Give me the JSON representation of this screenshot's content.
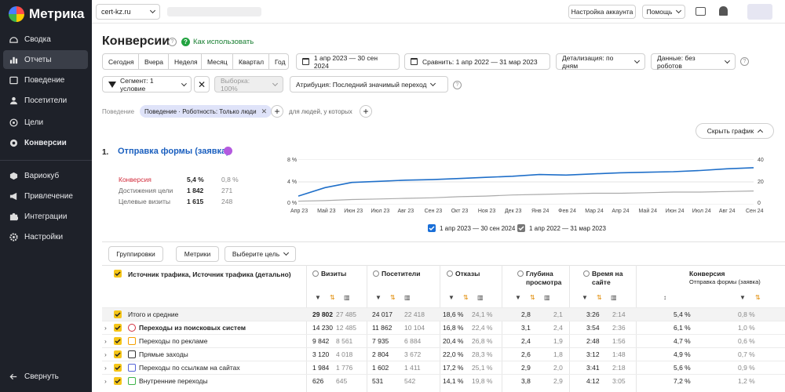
{
  "app": {
    "name": "Метрика"
  },
  "nav": {
    "items": [
      "Сводка",
      "Отчеты",
      "Поведение",
      "Посетители",
      "Цели",
      "Конверсии",
      "Вариокуб",
      "Привлечение",
      "Интеграции",
      "Настройки"
    ],
    "collapse": "Свернуть"
  },
  "top": {
    "site": "cert-kz.ru",
    "account_settings": "Настройка аккаунта",
    "help": "Помощь"
  },
  "page": {
    "title": "Конверсии",
    "howto": "Как использовать"
  },
  "periods": [
    "Сегодня",
    "Вчера",
    "Неделя",
    "Месяц",
    "Квартал",
    "Год"
  ],
  "date_range": "1 апр 2023 — 30 сен 2024",
  "compare": "Сравнить: 1 апр 2022 — 31 мар 2023",
  "detail": "Детализация: по дням",
  "data_filter": "Данные: без роботов",
  "segment": "Сегмент: 1 условие",
  "sample": "Выборка: 100%",
  "attribution": "Атрибуция: Последний значимый переход",
  "filter": {
    "behavior_lbl": "Поведение",
    "chip": "Поведение · Роботность: Только люди",
    "people": "для людей, у которых"
  },
  "hide_chart": "Скрыть график",
  "goal": {
    "index": "1.",
    "name": "Отправка формы (заявка)"
  },
  "stats": [
    {
      "label": "Конверсия",
      "v1": "5,4 %",
      "v2": "0,8 %"
    },
    {
      "label": "Достижения цели",
      "v1": "1 842",
      "v2": "271"
    },
    {
      "label": "Целевые визиты",
      "v1": "1 615",
      "v2": "248"
    }
  ],
  "colors": {
    "sidebar": "#1e2129",
    "accent": "#1a5fbf",
    "series1": "#1f6fc9",
    "series2": "#aaaaaa",
    "conversion": "#d22d3c",
    "green": "#22a340",
    "yellow": "#f5c518"
  },
  "chart_data": {
    "type": "line",
    "x": [
      "Апр 23",
      "Май 23",
      "Июн 23",
      "Июл 23",
      "Авг 23",
      "Сен 23",
      "Окт 23",
      "Ноя 23",
      "Дек 23",
      "Янв 24",
      "Фев 24",
      "Мар 24",
      "Апр 24",
      "Май 24",
      "Июн 24",
      "Июл 24",
      "Авг 24",
      "Сен 24"
    ],
    "y_left_ticks": [
      "8 %",
      "4 %",
      "0 %"
    ],
    "y_right_ticks": [
      "40",
      "20",
      "0"
    ],
    "ylim_left": [
      0,
      8
    ],
    "ylim_right": [
      0,
      40
    ],
    "series": [
      {
        "name": "1 апр 2023 — 30 сен 2024",
        "axis": "left",
        "values": [
          1.5,
          3.0,
          3.9,
          4.1,
          4.3,
          4.4,
          4.6,
          4.8,
          5.0,
          5.3,
          5.2,
          5.4,
          5.6,
          5.7,
          5.8,
          6.0,
          6.3,
          6.5
        ]
      },
      {
        "name": "1 апр 2022 — 31 мар 2023",
        "axis": "left",
        "values": [
          0.6,
          0.7,
          0.9,
          1.0,
          1.1,
          1.2,
          1.4,
          1.5,
          1.7,
          1.8,
          1.9,
          2.0,
          2.0,
          2.1,
          2.2,
          2.2,
          2.3,
          2.4
        ]
      }
    ],
    "grid": true,
    "legend": "bottom"
  },
  "table": {
    "buttons": [
      "Группировки",
      "Метрики",
      "Выберите цель"
    ],
    "dim_header": "Источник трафика, Источник трафика (детально)",
    "col_headers": [
      "Визиты",
      "Посетители",
      "Отказы",
      "Глубина просмотра",
      "Время на сайте",
      "Конверсия"
    ],
    "conv_sub": "Отправка формы (заявка)",
    "rows": [
      {
        "name": "Итого и средние",
        "visits": "29 802",
        "visits2": "27 485",
        "users": "24 017",
        "users2": "22 418",
        "bounce": "18,6 %",
        "bounce2": "24,1 %",
        "depth": "2,8",
        "depth2": "2,1",
        "time": "3:26",
        "time2": "2:14",
        "conv": "5,4 %",
        "conv2": "0,8 %"
      },
      {
        "name": "Переходы из поисковых систем",
        "visits": "14 230",
        "visits2": "12 485",
        "users": "11 862",
        "users2": "10 104",
        "bounce": "16,8 %",
        "bounce2": "22,4 %",
        "depth": "3,1",
        "depth2": "2,4",
        "time": "3:54",
        "time2": "2:36",
        "conv": "6,1 %",
        "conv2": "1,0 %"
      },
      {
        "name": "Переходы по рекламе",
        "visits": "9 842",
        "visits2": "8 561",
        "users": "7 935",
        "users2": "6 884",
        "bounce": "20,4 %",
        "bounce2": "26,8 %",
        "depth": "2,4",
        "depth2": "1,9",
        "time": "2:48",
        "time2": "1:56",
        "conv": "4,7 %",
        "conv2": "0,6 %"
      },
      {
        "name": "Прямые заходы",
        "visits": "3 120",
        "visits2": "4 018",
        "users": "2 804",
        "users2": "3 672",
        "bounce": "22,0 %",
        "bounce2": "28,3 %",
        "depth": "2,6",
        "depth2": "1,8",
        "time": "3:12",
        "time2": "1:48",
        "conv": "4,9 %",
        "conv2": "0,7 %"
      },
      {
        "name": "Переходы по ссылкам на сайтах",
        "visits": "1 984",
        "visits2": "1 776",
        "users": "1 602",
        "users2": "1 411",
        "bounce": "17,2 %",
        "bounce2": "25,1 %",
        "depth": "2,9",
        "depth2": "2,0",
        "time": "3:41",
        "time2": "2:18",
        "conv": "5,6 %",
        "conv2": "0,9 %"
      },
      {
        "name": "Внутренние переходы",
        "visits": "626",
        "visits2": "645",
        "users": "531",
        "users2": "542",
        "bounce": "14,1 %",
        "bounce2": "19,8 %",
        "depth": "3,8",
        "depth2": "2,9",
        "time": "4:12",
        "time2": "3:05",
        "conv": "7,2 %",
        "conv2": "1,2 %"
      }
    ]
  }
}
